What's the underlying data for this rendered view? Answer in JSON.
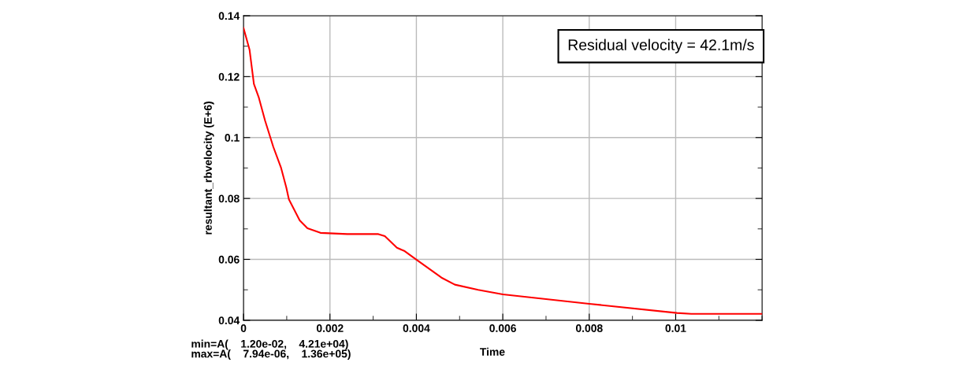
{
  "chart_data": {
    "type": "line",
    "xlabel": "Time",
    "ylabel": "resultant_rbvelocity (E+6)",
    "annotations": [
      "Residual velocity = 42.1m/s",
      "min=A(    1.20e-02,    4.21e+04)",
      "max=A(    7.94e-06,    1.36e+05)"
    ],
    "x": [
      0,
      0.00014,
      0.00024,
      0.00035,
      0.0005,
      0.00069,
      0.00087,
      0.00099,
      0.00105,
      0.0013,
      0.00148,
      0.00178,
      0.0024,
      0.00312,
      0.00327,
      0.00355,
      0.00373,
      0.004,
      0.00458,
      0.00489,
      0.00543,
      0.006,
      0.008,
      0.01003,
      0.01036,
      0.012
    ],
    "series": [
      {
        "color": "#ff0000",
        "values": [
          0.136,
          0.1288,
          0.1176,
          0.1133,
          0.1055,
          0.0969,
          0.09,
          0.0836,
          0.0797,
          0.0728,
          0.0702,
          0.0687,
          0.0683,
          0.0683,
          0.0676,
          0.0638,
          0.0627,
          0.0599,
          0.054,
          0.0517,
          0.05,
          0.0485,
          0.0454,
          0.0424,
          0.0421,
          0.0421
        ]
      }
    ],
    "xlim": [
      0,
      0.012
    ],
    "ylim": [
      0.04,
      0.14
    ],
    "xticks": [
      0,
      0.002,
      0.004,
      0.006,
      0.008,
      0.01
    ],
    "yticks": [
      0.04,
      0.06,
      0.08,
      {
        "value": 0.1,
        "label": "0.1"
      },
      0.12,
      0.14
    ],
    "grid": true,
    "legend": false,
    "marker": "none",
    "line_style": "solid"
  }
}
